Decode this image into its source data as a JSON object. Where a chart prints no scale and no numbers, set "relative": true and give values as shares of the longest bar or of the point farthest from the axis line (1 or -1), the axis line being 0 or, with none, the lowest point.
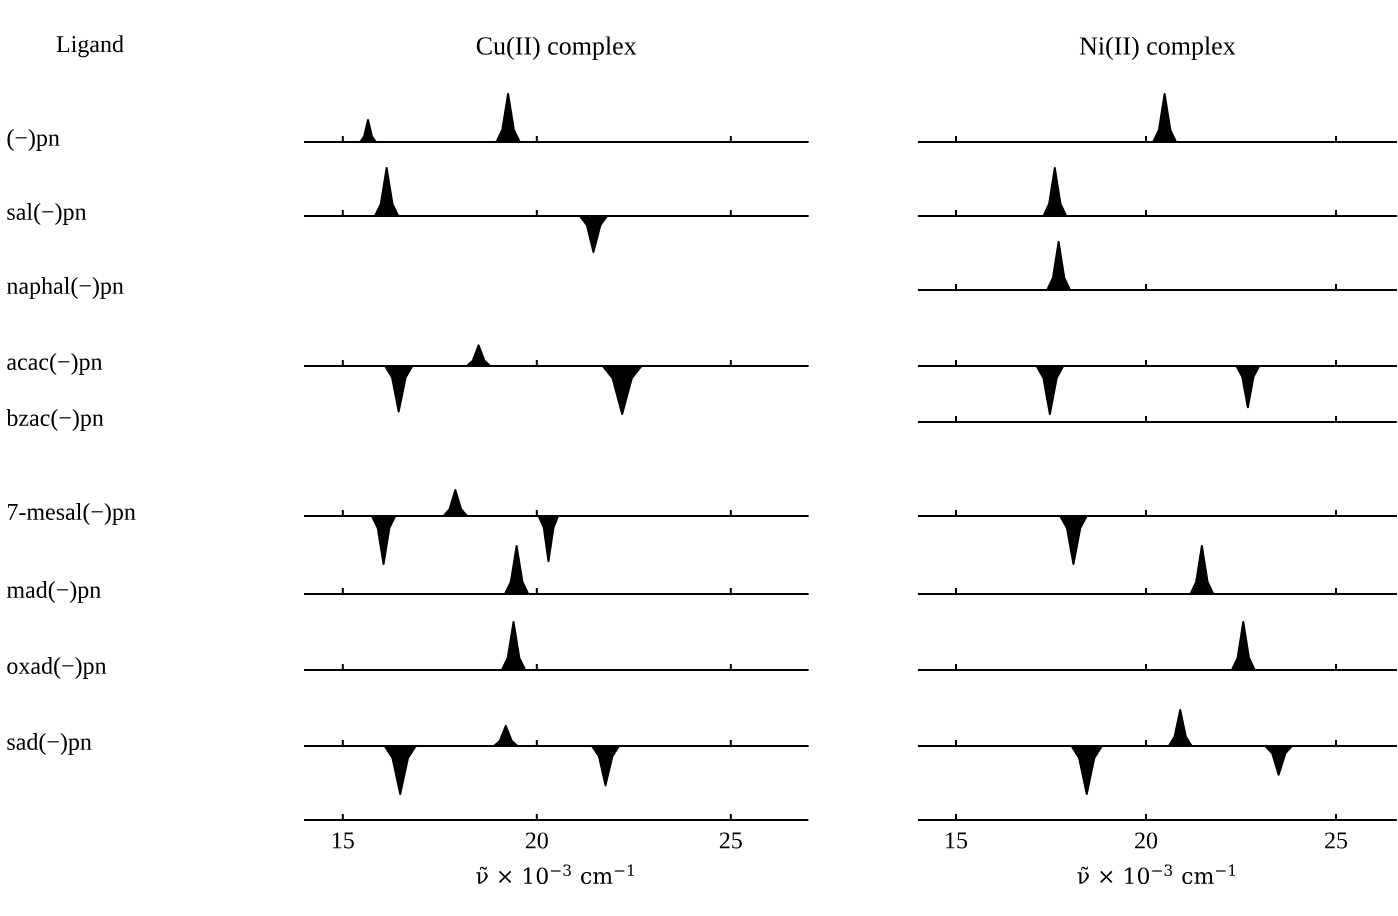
{
  "chart_data": [
    {
      "type": "other",
      "title": "Ligand",
      "annotations": [
        "(−)pn",
        "sal(−)pn",
        "naphal(−)pn",
        "acac(−)pn",
        "bzac(−)pn",
        "7-mesal(−)pn",
        "mad(−)pn",
        "oxad(−)pn",
        "sad(−)pn"
      ]
    },
    {
      "type": "area",
      "relative": true,
      "title": "Cu(II) complex",
      "color": "#000000",
      "xlim": [
        14,
        27
      ],
      "xticks": [
        15,
        20,
        25
      ],
      "tick_labels": false,
      "x": [
        14,
        15.45,
        15.55,
        15.65,
        15.75,
        15.85,
        18.96,
        19.11,
        19.26,
        19.41,
        19.56,
        27
      ],
      "values": [
        0,
        0,
        0.12,
        0.46,
        0.12,
        0,
        0,
        0.25,
        1,
        0.25,
        0,
        0
      ]
    },
    {
      "type": "area",
      "relative": true,
      "color": "#000000",
      "xlim": [
        14,
        27
      ],
      "xticks": [
        15,
        20,
        25
      ],
      "tick_labels": false,
      "x": [
        14,
        15.83,
        15.98,
        16.13,
        16.28,
        16.43,
        21.11,
        21.29,
        21.46,
        21.64,
        21.81,
        27
      ],
      "values": [
        0,
        0,
        0.25,
        1,
        0.25,
        0,
        0,
        -0.19,
        -0.75,
        -0.19,
        0,
        0
      ]
    },
    {
      "type": "area",
      "relative": true,
      "color": "#000000",
      "xlim": [
        14,
        27
      ],
      "xticks": [
        15,
        20,
        25
      ],
      "tick_labels": false,
      "x": [
        14,
        16.09,
        16.27,
        16.44,
        16.62,
        16.79,
        18.2,
        18.35,
        18.5,
        18.65,
        18.8,
        21.7,
        21.95,
        22.2,
        22.45,
        22.7,
        27
      ],
      "values": [
        0,
        0,
        -0.24,
        -0.95,
        -0.24,
        0,
        0,
        0.11,
        0.43,
        0.11,
        0,
        0,
        -0.25,
        -1,
        -0.25,
        0,
        0
      ]
    },
    {
      "type": "area",
      "relative": true,
      "color": "#000000",
      "xlim": [
        14,
        27
      ],
      "xticks": [
        15,
        20,
        25
      ],
      "tick_labels": false,
      "x": [
        14,
        15.75,
        15.9,
        16.05,
        16.2,
        16.35,
        17.6,
        17.75,
        17.9,
        18.05,
        18.2,
        20.05,
        20.18,
        20.3,
        20.43,
        20.55,
        27
      ],
      "values": [
        0,
        0,
        -0.25,
        -1,
        -0.25,
        0,
        0,
        0.14,
        0.54,
        0.14,
        0,
        0,
        -0.24,
        -0.94,
        -0.24,
        0,
        0
      ]
    },
    {
      "type": "area",
      "relative": true,
      "color": "#000000",
      "xlim": [
        14,
        27
      ],
      "xticks": [
        15,
        20,
        25
      ],
      "tick_labels": false,
      "x": [
        14,
        19.18,
        19.33,
        19.48,
        19.63,
        19.78,
        27
      ],
      "values": [
        0,
        0,
        0.25,
        1,
        0.25,
        0,
        0
      ]
    },
    {
      "type": "area",
      "relative": true,
      "color": "#000000",
      "xlim": [
        14,
        27
      ],
      "xticks": [
        15,
        20,
        25
      ],
      "tick_labels": false,
      "x": [
        14,
        19.1,
        19.25,
        19.4,
        19.55,
        19.7,
        27
      ],
      "values": [
        0,
        0,
        0.25,
        1,
        0.25,
        0,
        0
      ]
    },
    {
      "type": "area",
      "relative": true,
      "color": "#000000",
      "xlim": [
        14,
        27
      ],
      "xticks": [
        15,
        20,
        25
      ],
      "tick_labels": "x",
      "xlabel": "ν̃ × 10$^{−3}$ cm$^{−1}$",
      "x": [
        14,
        16.08,
        16.28,
        16.48,
        16.68,
        16.88,
        18.9,
        19.05,
        19.2,
        19.35,
        19.5,
        21.42,
        21.6,
        21.77,
        21.95,
        22.12,
        27
      ],
      "values": [
        0,
        0,
        -0.25,
        -1,
        -0.25,
        0,
        0,
        0.11,
        0.42,
        0.11,
        0,
        0,
        -0.21,
        -0.82,
        -0.21,
        0,
        0
      ]
    },
    {
      "type": "area",
      "relative": true,
      "title": "Ni(II) complex",
      "color": "#000000",
      "xlim": [
        14,
        26.6
      ],
      "xticks": [
        15,
        20,
        25
      ],
      "tick_labels": false,
      "x": [
        14,
        20.19,
        20.34,
        20.49,
        20.64,
        20.79,
        26.6
      ],
      "values": [
        0,
        0,
        0.25,
        1,
        0.25,
        0,
        0
      ]
    },
    {
      "type": "area",
      "relative": true,
      "color": "#000000",
      "xlim": [
        14,
        26.6
      ],
      "xticks": [
        15,
        20,
        25
      ],
      "tick_labels": false,
      "x": [
        14,
        17.3,
        17.45,
        17.6,
        17.75,
        17.9,
        26.6
      ],
      "values": [
        0,
        0,
        0.25,
        1,
        0.25,
        0,
        0
      ]
    },
    {
      "type": "area",
      "relative": true,
      "color": "#000000",
      "xlim": [
        14,
        26.6
      ],
      "xticks": [
        15,
        20,
        25
      ],
      "tick_labels": false,
      "x": [
        14,
        17.4,
        17.55,
        17.7,
        17.85,
        18,
        26.6
      ],
      "values": [
        0,
        0,
        0.25,
        1,
        0.25,
        0,
        0
      ]
    },
    {
      "type": "area",
      "relative": true,
      "color": "#000000",
      "xlim": [
        14,
        26.6
      ],
      "xticks": [
        15,
        20,
        25
      ],
      "tick_labels": false,
      "x": [
        14,
        17.12,
        17.3,
        17.47,
        17.65,
        17.82,
        22.38,
        22.53,
        22.68,
        22.83,
        22.98,
        26.6
      ],
      "values": [
        0,
        0,
        -0.25,
        -1,
        -0.25,
        0,
        0,
        -0.22,
        -0.86,
        -0.22,
        0,
        0
      ]
    },
    {
      "type": "other"
    },
    {
      "type": "area",
      "relative": true,
      "color": "#000000",
      "xlim": [
        14,
        26.6
      ],
      "xticks": [
        15,
        20,
        25
      ],
      "tick_labels": false,
      "x": [
        14,
        17.74,
        17.92,
        18.09,
        18.27,
        18.44,
        26.6
      ],
      "values": [
        0,
        0,
        -0.25,
        -1,
        -0.25,
        0,
        0
      ]
    },
    {
      "type": "area",
      "relative": true,
      "color": "#000000",
      "xlim": [
        14,
        26.6
      ],
      "xticks": [
        15,
        20,
        25
      ],
      "tick_labels": false,
      "x": [
        14,
        21.17,
        21.32,
        21.47,
        21.62,
        21.77,
        26.6
      ],
      "values": [
        0,
        0,
        0.25,
        1,
        0.25,
        0,
        0
      ]
    },
    {
      "type": "area",
      "relative": true,
      "color": "#000000",
      "xlim": [
        14,
        26.6
      ],
      "xticks": [
        15,
        20,
        25
      ],
      "tick_labels": false,
      "x": [
        14,
        22.26,
        22.41,
        22.56,
        22.71,
        22.86,
        26.6
      ],
      "values": [
        0,
        0,
        0.25,
        1,
        0.25,
        0,
        0
      ]
    },
    {
      "type": "area",
      "relative": true,
      "color": "#000000",
      "xlim": [
        14,
        26.6
      ],
      "xticks": [
        15,
        20,
        25
      ],
      "tick_labels": "x",
      "xlabel": "ν̃ × 10$^{−3}$ cm$^{−1}$",
      "x": [
        14,
        18.04,
        18.24,
        18.44,
        18.64,
        18.84,
        20.6,
        20.75,
        20.9,
        21.05,
        21.2,
        23.14,
        23.32,
        23.49,
        23.67,
        23.84,
        26.6
      ],
      "values": [
        0,
        0,
        -0.25,
        -1,
        -0.25,
        0,
        0,
        0.19,
        0.75,
        0.19,
        0,
        0,
        -0.15,
        -0.6,
        -0.15,
        0,
        0
      ]
    }
  ]
}
